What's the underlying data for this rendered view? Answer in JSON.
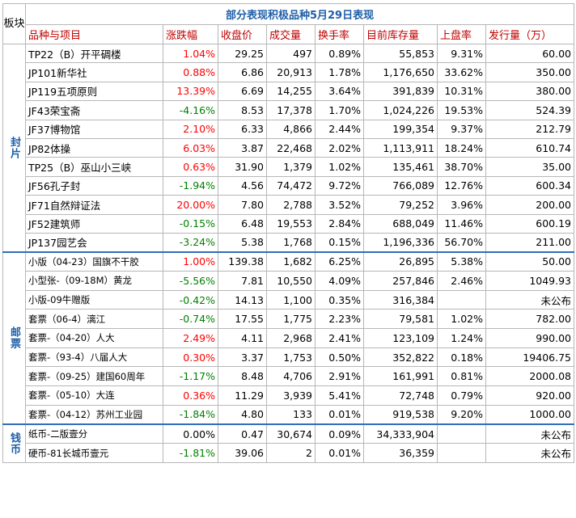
{
  "sheet": {
    "title": "部分表现积极品种5月29日表现",
    "corner": "板块",
    "headers": [
      "品种与项目",
      "涨跌幅",
      "收盘价",
      "成交量",
      "换手率",
      "目前库存量",
      "上盘率",
      "发行量（万）"
    ]
  },
  "colors": {
    "positive": "#ff0000",
    "negative": "#008000",
    "neutral": "#000000",
    "section": "#1f5fa8",
    "header": "#c00000"
  },
  "sections": [
    {
      "label": "封片",
      "rows": [
        [
          "TP22（B）开平碉楼",
          "1.04%",
          "29.25",
          "497",
          "0.89%",
          "55,853",
          "9.31%",
          "60.00"
        ],
        [
          "JP101新华社",
          "0.88%",
          "6.86",
          "20,913",
          "1.78%",
          "1,176,650",
          "33.62%",
          "350.00"
        ],
        [
          "JP119五项原则",
          "13.39%",
          "6.69",
          "14,255",
          "3.64%",
          "391,839",
          "10.31%",
          "380.00"
        ],
        [
          "JF43荣宝斋",
          "-4.16%",
          "8.53",
          "17,378",
          "1.70%",
          "1,024,226",
          "19.53%",
          "524.39"
        ],
        [
          "JF37博物馆",
          "2.10%",
          "6.33",
          "4,866",
          "2.44%",
          "199,354",
          "9.37%",
          "212.79"
        ],
        [
          "JP82体操",
          "6.03%",
          "3.87",
          "22,468",
          "2.02%",
          "1,113,911",
          "18.24%",
          "610.74"
        ],
        [
          "TP25（B）巫山小三峡",
          "0.63%",
          "31.90",
          "1,379",
          "1.02%",
          "135,461",
          "38.70%",
          "35.00"
        ],
        [
          "JF56孔子封",
          "-1.94%",
          "4.56",
          "74,472",
          "9.72%",
          "766,089",
          "12.76%",
          "600.34"
        ],
        [
          "JF71自然辩证法",
          "20.00%",
          "7.80",
          "2,788",
          "3.52%",
          "79,252",
          "3.96%",
          "200.00"
        ],
        [
          "JF52建筑师",
          "-0.15%",
          "6.48",
          "19,553",
          "2.84%",
          "688,049",
          "11.46%",
          "600.19"
        ],
        [
          "JP137园艺会",
          "-3.24%",
          "5.38",
          "1,768",
          "0.15%",
          "1,196,336",
          "56.70%",
          "211.00"
        ]
      ]
    },
    {
      "label": "邮票",
      "rows": [
        [
          "小版（04-23）国旗不干胶",
          "1.00%",
          "139.38",
          "1,682",
          "6.25%",
          "26,895",
          "5.38%",
          "50.00"
        ],
        [
          "小型张-（09-18M）黄龙",
          "-5.56%",
          "7.81",
          "10,550",
          "4.09%",
          "257,846",
          "2.46%",
          "1049.93"
        ],
        [
          "小版-09牛赠版",
          "-0.42%",
          "14.13",
          "1,100",
          "0.35%",
          "316,384",
          "",
          "未公布"
        ],
        [
          "套票（06-4）漓江",
          "-0.74%",
          "17.55",
          "1,775",
          "2.23%",
          "79,581",
          "1.02%",
          "782.00"
        ],
        [
          "套票-（04-20）人大",
          "2.49%",
          "4.11",
          "2,968",
          "2.41%",
          "123,109",
          "1.24%",
          "990.00"
        ],
        [
          "套票-（93-4）八届人大",
          "0.30%",
          "3.37",
          "1,753",
          "0.50%",
          "352,822",
          "0.18%",
          "19406.75"
        ],
        [
          "套票-（09-25）建国60周年",
          "-1.17%",
          "8.48",
          "4,706",
          "2.91%",
          "161,991",
          "0.81%",
          "2000.08"
        ],
        [
          "套票-（05-10）大连",
          "0.36%",
          "11.29",
          "3,939",
          "5.41%",
          "72,748",
          "0.79%",
          "920.00"
        ],
        [
          "套票-（04-12）苏州工业园",
          "-1.84%",
          "4.80",
          "133",
          "0.01%",
          "919,538",
          "9.20%",
          "1000.00"
        ]
      ]
    },
    {
      "label": "钱币",
      "rows": [
        [
          "纸币-二版壹分",
          "0.00%",
          "0.47",
          "30,674",
          "0.09%",
          "34,333,904",
          "",
          "未公布"
        ],
        [
          "硬币-81长城币壹元",
          "-1.81%",
          "39.06",
          "2",
          "0.01%",
          "36,359",
          "",
          "未公布"
        ]
      ]
    }
  ]
}
